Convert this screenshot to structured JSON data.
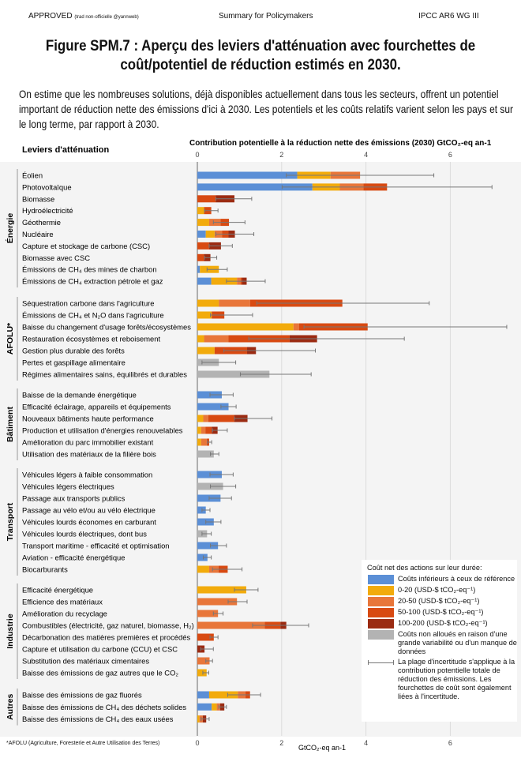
{
  "header": {
    "status": "APPROVED",
    "translation_note": "(trad non-officielle @yannweb)",
    "center": "Summary for Policymakers",
    "right": "IPCC AR6 WG III"
  },
  "title": "Figure SPM.7 : Aperçu des leviers d'atténuation avec fourchettes de coût/potentiel de réduction estimés en 2030.",
  "intro": "On estime que les nombreuses solutions, déjà disponibles actuellement dans tous les secteurs, offrent un potentiel important de réduction nette des émissions d'ici à 2030. Les potentiels et les coûts relatifs varient selon les pays et sur le long terme, par rapport à 2030.",
  "footnote": "*AFOLU (Agriculture, Foresterie et Autre Utilisation des Terres)",
  "legend": {
    "title": "Coût net des actions sur leur durée:",
    "items": [
      {
        "key": "blue",
        "label": "Coûts inférieurs à ceux de référence"
      },
      {
        "key": "y",
        "label": "0-20 (USD-$ tCO₂-eq⁻¹)"
      },
      {
        "key": "o",
        "label": "20-50 (USD-$ tCO₂-eq⁻¹)"
      },
      {
        "key": "r",
        "label": "50-100 (USD-$ tCO₂-eq⁻¹)"
      },
      {
        "key": "d",
        "label": "100-200 (USD-$ tCO₂-eq⁻¹)"
      },
      {
        "key": "g",
        "label": "Coûts non alloués en raison d'une grande variabilité ou d'un manque de données"
      }
    ],
    "uncertainty_label": "La plage d'incertitude s'applique à la contribution potentielle totale de réduction des émissions. Les fourchettes de coût sont également liées à l'incertitude."
  },
  "colors": {
    "blue": "#5b8fd6",
    "y": "#f2ab0c",
    "o": "#e8763a",
    "r": "#d84a12",
    "d": "#9b2b12",
    "g": "#b3b3b3"
  },
  "chart_data": {
    "type": "bar",
    "orientation": "horizontal-stacked",
    "ylabel": "Leviers d'atténuation",
    "xlabel_top": "Contribution potentielle à la réduction nette des émissions (2030) GtCO₂-eq an-1",
    "xlabel_bottom": "GtCO₂-eq an-1",
    "xlim": [
      0,
      7.6
    ],
    "xticks": [
      0,
      2,
      4,
      6
    ],
    "grid": true,
    "legend_position": "bottom-right",
    "note": "stack entries are [cost category, cumulative end value]; range = uncertainty interval",
    "sectors": [
      {
        "name": "Énergie",
        "levers": [
          {
            "label": "Éolien",
            "stack": [
              [
                "blue",
                2.37
              ],
              [
                "y",
                3.16
              ],
              [
                "o",
                3.86
              ]
            ],
            "range": [
              2.11,
              5.61
            ]
          },
          {
            "label": "Photovoltaïque",
            "stack": [
              [
                "blue",
                2.73
              ],
              [
                "y",
                3.38
              ],
              [
                "o",
                3.94
              ],
              [
                "r",
                4.5
              ]
            ],
            "range": [
              2.01,
              6.99
            ]
          },
          {
            "label": "Biomasse",
            "stack": [
              [
                "r",
                0.44
              ],
              [
                "d",
                0.88
              ]
            ],
            "range": [
              0.44,
              1.29
            ]
          },
          {
            "label": "Hydroélectricité",
            "stack": [
              [
                "y",
                0.16
              ],
              [
                "r",
                0.33
              ]
            ],
            "range": [
              0.17,
              0.49
            ]
          },
          {
            "label": "Géothermie",
            "stack": [
              [
                "y",
                0.28
              ],
              [
                "o",
                0.55
              ],
              [
                "r",
                0.75
              ]
            ],
            "range": [
              0.38,
              1.13
            ]
          },
          {
            "label": "Nucléaire",
            "stack": [
              [
                "blue",
                0.2
              ],
              [
                "y",
                0.41
              ],
              [
                "o",
                0.59
              ],
              [
                "r",
                0.74
              ],
              [
                "d",
                0.89
              ]
            ],
            "range": [
              0.44,
              1.34
            ]
          },
          {
            "label": "Capture et stockage de carbone (CSC)",
            "stack": [
              [
                "r",
                0.28
              ],
              [
                "d",
                0.56
              ]
            ],
            "range": [
              0.28,
              0.83
            ]
          },
          {
            "label": "Biomasse avec CSC",
            "stack": [
              [
                "r",
                0.16
              ],
              [
                "d",
                0.31
              ]
            ],
            "range": [
              0.17,
              0.46
            ]
          },
          {
            "label": "Émissions de CH₄ des mines de charbon",
            "stack": [
              [
                "blue",
                0.06
              ],
              [
                "y",
                0.51
              ]
            ],
            "range": [
              0.23,
              0.71
            ]
          },
          {
            "label": "Émissions de CH₄ extraction pétrole et gaz",
            "stack": [
              [
                "blue",
                0.33
              ],
              [
                "y",
                0.94
              ],
              [
                "o",
                1.03
              ],
              [
                "r",
                1.06
              ],
              [
                "d",
                1.17
              ]
            ],
            "range": [
              0.69,
              1.61
            ]
          }
        ]
      },
      {
        "name": "AFOLU*",
        "levers": [
          {
            "label": "Séquestration carbone dans l'agriculture",
            "stack": [
              [
                "y",
                0.51
              ],
              [
                "o",
                1.25
              ],
              [
                "r",
                3.44
              ]
            ],
            "range": [
              1.41,
              5.5
            ]
          },
          {
            "label": "Émissions de CH₄ et N₂O dans l'agriculture",
            "stack": [
              [
                "y",
                0.34
              ],
              [
                "r",
                0.64
              ]
            ],
            "range": [
              0.31,
              1.31
            ]
          },
          {
            "label": "Baisse du changement d'usage forêts/écosystèmes",
            "stack": [
              [
                "y",
                2.28
              ],
              [
                "o",
                2.41
              ],
              [
                "r",
                4.04
              ]
            ],
            "range": [
              2.53,
              7.34
            ]
          },
          {
            "label": "Restauration écosystèmes et reboisement",
            "stack": [
              [
                "y",
                0.16
              ],
              [
                "o",
                0.74
              ],
              [
                "r",
                2.19
              ],
              [
                "d",
                2.84
              ]
            ],
            "range": [
              1.22,
              4.91
            ]
          },
          {
            "label": "Gestion plus durable des forêts",
            "stack": [
              [
                "y",
                0.41
              ],
              [
                "r",
                1.18
              ],
              [
                "d",
                1.39
              ]
            ],
            "range": [
              0.63,
              2.8
            ]
          },
          {
            "label": "Pertes et gaspillage alimentaire",
            "stack": [
              [
                "g",
                0.51
              ]
            ],
            "range": [
              0.11,
              0.91
            ]
          },
          {
            "label": "Régimes alimentaires sains, équilibrés et durables",
            "stack": [
              [
                "g",
                1.71
              ]
            ],
            "range": [
              1.02,
              2.7
            ]
          }
        ]
      },
      {
        "name": "Bâtiment",
        "levers": [
          {
            "label": "Baisse de la demande énergétique",
            "stack": [
              [
                "blue",
                0.58
              ]
            ],
            "range": [
              0.3,
              0.85
            ]
          },
          {
            "label": "Efficacité éclairage, appareils et équipements",
            "stack": [
              [
                "blue",
                0.74
              ]
            ],
            "range": [
              0.56,
              0.92
            ]
          },
          {
            "label": "Nouveaux bâtiments haute performance",
            "stack": [
              [
                "y",
                0.14
              ],
              [
                "o",
                0.26
              ],
              [
                "r",
                0.88
              ],
              [
                "d",
                1.19
              ]
            ],
            "range": [
              0.88,
              1.77
            ]
          },
          {
            "label": "Production et utilisation d'énergies renouvelables",
            "stack": [
              [
                "y",
                0.09
              ],
              [
                "o",
                0.19
              ],
              [
                "r",
                0.34
              ],
              [
                "d",
                0.48
              ]
            ],
            "range": [
              0.36,
              0.71
            ]
          },
          {
            "label": "Amélioration du parc immobilier existant",
            "stack": [
              [
                "y",
                0.09
              ],
              [
                "o",
                0.22
              ],
              [
                "r",
                0.28
              ]
            ],
            "range": [
              0.24,
              0.34
            ]
          },
          {
            "label": "Utilisation des matériaux de la filière bois",
            "stack": [
              [
                "g",
                0.39
              ]
            ],
            "range": [
              0.31,
              0.51
            ]
          }
        ]
      },
      {
        "name": "Transport",
        "levers": [
          {
            "label": "Véhicules légers à faible consommation",
            "stack": [
              [
                "blue",
                0.58
              ]
            ],
            "range": [
              0.3,
              0.85
            ]
          },
          {
            "label": "Véhicules légers électriques",
            "stack": [
              [
                "g",
                0.61
              ]
            ],
            "range": [
              0.31,
              0.91
            ]
          },
          {
            "label": "Passage aux transports publics",
            "stack": [
              [
                "blue",
                0.55
              ]
            ],
            "range": [
              0.28,
              0.81
            ]
          },
          {
            "label": "Passage au vélo et/ou au vélo électrique",
            "stack": [
              [
                "blue",
                0.2
              ]
            ],
            "range": [
              0.11,
              0.3
            ]
          },
          {
            "label": "Véhicules lourds économes en carburant",
            "stack": [
              [
                "blue",
                0.39
              ]
            ],
            "range": [
              0.2,
              0.56
            ]
          },
          {
            "label": "Véhicules lourds électriques, dont bus",
            "stack": [
              [
                "g",
                0.23
              ]
            ],
            "range": [
              0.11,
              0.33
            ]
          },
          {
            "label": "Transport maritime - efficacité et optimisation",
            "stack": [
              [
                "blue",
                0.49
              ]
            ],
            "range": [
              0.31,
              0.69
            ]
          },
          {
            "label": "Aviation - efficacité énergétique",
            "stack": [
              [
                "blue",
                0.24
              ]
            ],
            "range": [
              0.14,
              0.33
            ]
          },
          {
            "label": "Biocarburants",
            "stack": [
              [
                "y",
                0.28
              ],
              [
                "o",
                0.5
              ],
              [
                "r",
                0.72
              ]
            ],
            "range": [
              0.36,
              1.06
            ]
          }
        ]
      },
      {
        "name": "Industrie",
        "levers": [
          {
            "label": "Efficacité énergétique",
            "stack": [
              [
                "y",
                1.16
              ]
            ],
            "range": [
              0.88,
              1.44
            ]
          },
          {
            "label": "Efficience des matériaux",
            "stack": [
              [
                "o",
                0.94
              ]
            ],
            "range": [
              0.73,
              1.18
            ]
          },
          {
            "label": "Amélioration du recyclage",
            "stack": [
              [
                "o",
                0.49
              ]
            ],
            "range": [
              0.38,
              0.61
            ]
          },
          {
            "label": "Combustibles (électricité, gaz naturel, biomasse, H₂)",
            "stack": [
              [
                "o",
                1.6
              ],
              [
                "r",
                1.97
              ],
              [
                "d",
                2.11
              ]
            ],
            "range": [
              1.31,
              2.64
            ]
          },
          {
            "label": "Décarbonation des matières premières et procédés",
            "stack": [
              [
                "r",
                0.39
              ]
            ],
            "range": [
              0.3,
              0.49
            ]
          },
          {
            "label": "Capture et utilisation du carbone (CCU) et CSC",
            "stack": [
              [
                "d",
                0.17
              ]
            ],
            "range": [
              0.08,
              0.38
            ]
          },
          {
            "label": "Substitution des matériaux cimentaires",
            "stack": [
              [
                "o",
                0.29
              ]
            ],
            "range": [
              0.2,
              0.36
            ]
          },
          {
            "label": "Baisse des émissions de gaz autres que le CO₂",
            "stack": [
              [
                "y",
                0.22
              ]
            ],
            "range": [
              0.13,
              0.27
            ]
          }
        ]
      },
      {
        "name": "Autres",
        "levers": [
          {
            "label": "Baisse des émissions de gaz fluorés",
            "stack": [
              [
                "blue",
                0.28
              ],
              [
                "y",
                0.96
              ],
              [
                "o",
                1.14
              ],
              [
                "r",
                1.25
              ]
            ],
            "range": [
              0.72,
              1.5
            ]
          },
          {
            "label": "Baisse des émissions de CH₄ des déchets solides",
            "stack": [
              [
                "blue",
                0.34
              ],
              [
                "y",
                0.46
              ],
              [
                "o",
                0.54
              ],
              [
                "d",
                0.64
              ]
            ],
            "range": [
              0.51,
              0.69
            ]
          },
          {
            "label": "Baisse des émissions de CH₄ des eaux usées",
            "stack": [
              [
                "y",
                0.05
              ],
              [
                "o",
                0.13
              ],
              [
                "d",
                0.21
              ]
            ],
            "range": [
              0.09,
              0.28
            ]
          }
        ]
      }
    ]
  }
}
